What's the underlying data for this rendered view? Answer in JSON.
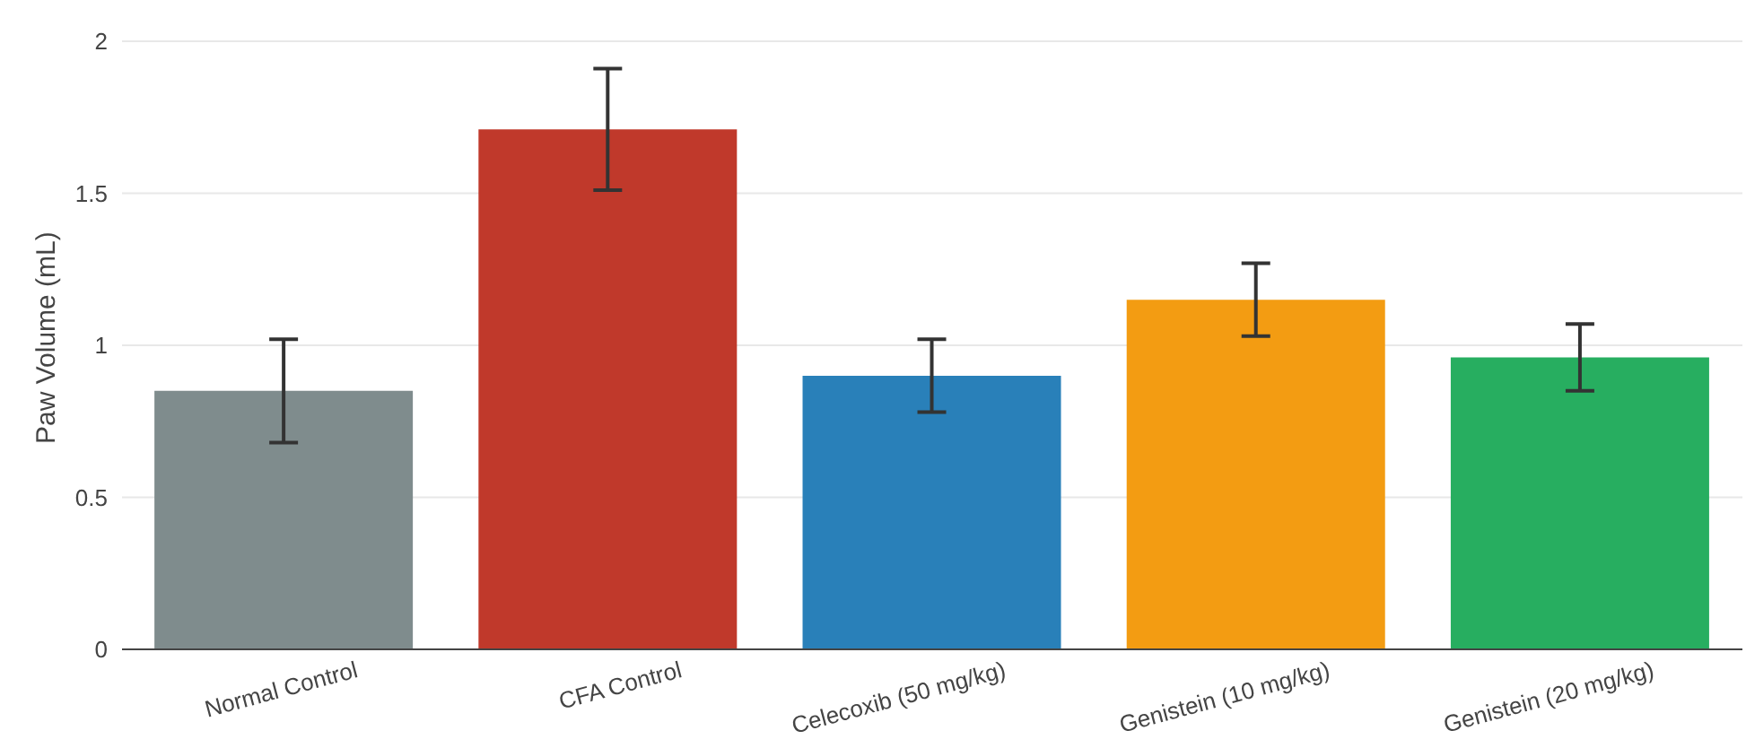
{
  "chart_data": {
    "type": "bar",
    "ylabel": "Paw Volume (mL)",
    "categories": [
      "Normal Control",
      "CFA Control",
      "Celecoxib (50 mg/kg)",
      "Genistein (10 mg/kg)",
      "Genistein (20 mg/kg)"
    ],
    "values": [
      0.85,
      1.71,
      0.9,
      1.15,
      0.96
    ],
    "errors": [
      0.17,
      0.2,
      0.12,
      0.12,
      0.11
    ],
    "colors": [
      "#7f8c8d",
      "#c0392b",
      "#2980b9",
      "#f39c12",
      "#27ae60"
    ],
    "ylim": [
      0,
      2
    ],
    "yticks": [
      0,
      0.5,
      1,
      1.5,
      2
    ],
    "grid": "y",
    "legend": false
  }
}
